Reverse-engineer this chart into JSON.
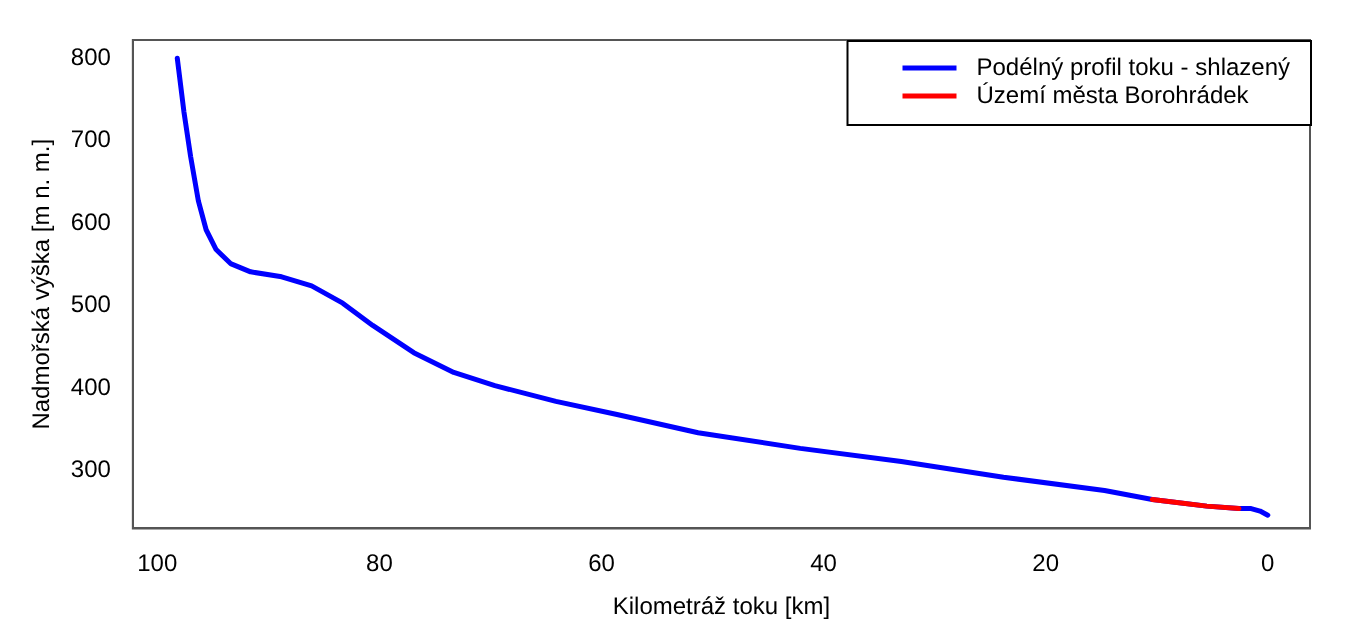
{
  "chart_data": {
    "type": "line",
    "xlabel": "Kilometráž toku [km]",
    "ylabel": "Nadmořská výška [m n. m.]",
    "xlim": [
      102.2,
      -3.8
    ],
    "xticks": [
      100,
      80,
      60,
      40,
      20,
      0
    ],
    "ylim": [
      230,
      822
    ],
    "yticks": [
      300,
      400,
      500,
      600,
      700,
      800
    ],
    "grid": false,
    "legend": "top right",
    "marker": "none",
    "line_style": "solid",
    "series": [
      {
        "name": "Podélný profil toku - shlazený",
        "color": "#0000ff",
        "x": [
          98.2,
          97.6,
          97.0,
          96.3,
          95.6,
          94.7,
          93.4,
          91.6,
          88.8,
          86.1,
          83.3,
          80.6,
          76.9,
          73.3,
          69.6,
          64.1,
          58.6,
          51.3,
          42.1,
          33.0,
          23.8,
          14.7,
          10.4,
          5.5,
          2.6,
          1.5,
          0.7,
          0
        ],
        "values": [
          800,
          735,
          681,
          627,
          592,
          568,
          551,
          541,
          535,
          524,
          503,
          476,
          443,
          419,
          403,
          384,
          368,
          346,
          327,
          311,
          292,
          276,
          265,
          257,
          254,
          254,
          251,
          246
        ]
      },
      {
        "name": "Území města Borohrádek",
        "color": "#ff0000",
        "x": [
          10.4,
          8,
          5.5,
          2.6
        ],
        "values": [
          265,
          261,
          257,
          254
        ]
      }
    ]
  }
}
